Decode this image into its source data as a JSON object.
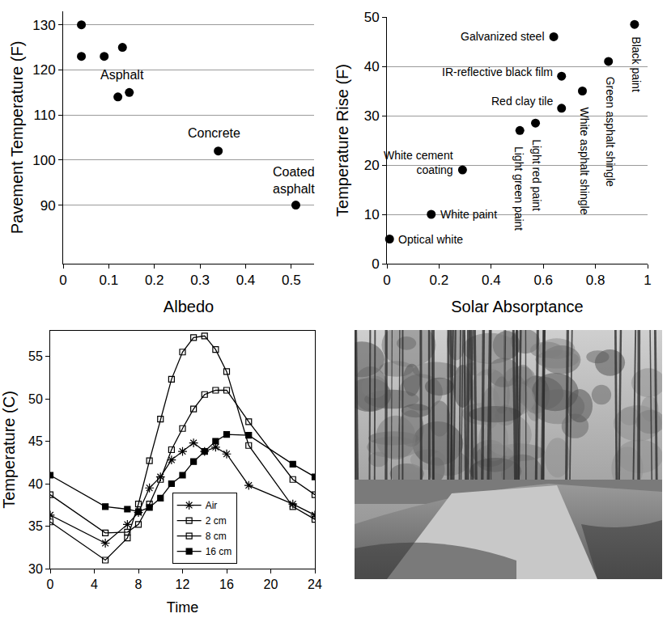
{
  "chart_data": [
    {
      "type": "scatter",
      "x_label": "Albedo",
      "y_label": "Pavement Temperature (F)",
      "xlim": [
        0,
        0.55
      ],
      "xticks": [
        0,
        0.1,
        0.2,
        0.3,
        0.4,
        0.5
      ],
      "ylim": [
        77,
        133
      ],
      "yticks": [
        90,
        100,
        110,
        120,
        130
      ],
      "grid": true,
      "marker": "circle",
      "color": "#000000",
      "x": [
        0.04,
        0.04,
        0.09,
        0.13,
        0.12,
        0.145,
        0.34,
        0.51
      ],
      "values": [
        130,
        123,
        123,
        125,
        114,
        115,
        102,
        90
      ],
      "annotations": [
        {
          "text": "Asphalt",
          "x": 0.13,
          "y": 119
        },
        {
          "text": "Concrete",
          "x": 0.33,
          "y": 106
        },
        {
          "text": "Coated asphalt",
          "x": 0.505,
          "y": 95.5
        }
      ]
    },
    {
      "type": "scatter",
      "x_label": "Solar Absorptance",
      "y_label": "Temperature Rise (F)",
      "xlim": [
        0,
        1
      ],
      "xticks": [
        0,
        0.2,
        0.4,
        0.6,
        0.8,
        1
      ],
      "ylim": [
        0,
        50
      ],
      "yticks": [
        0,
        10,
        20,
        30,
        40,
        50
      ],
      "grid": true,
      "marker": "circle",
      "color": "#000000",
      "x": [
        0.01,
        0.17,
        0.29,
        0.51,
        0.57,
        0.67,
        0.67,
        0.64,
        0.75,
        0.85,
        0.95
      ],
      "values": [
        5,
        10,
        19,
        27,
        28.5,
        31.5,
        38,
        46,
        35,
        41,
        48.5
      ],
      "labels": [
        "Optical white",
        "White paint",
        "White cement coating",
        "Light green paint",
        "Light red paint",
        "Red clay tile",
        "IR-reflective black film",
        "Galvanized steel",
        "White asphalt shingle",
        "Green asphalt shingle",
        "Black paint"
      ]
    },
    {
      "type": "line",
      "x_label": "Time",
      "y_label": "Temperature (C)",
      "xlim": [
        0,
        24
      ],
      "xticks": [
        0,
        4,
        8,
        12,
        16,
        20,
        24
      ],
      "ylim": [
        30,
        58
      ],
      "yticks": [
        30,
        35,
        40,
        45,
        50,
        55
      ],
      "grid": false,
      "legend": "bottom",
      "x": [
        0,
        5,
        7,
        8,
        9,
        10,
        11,
        12,
        13,
        14,
        15,
        16,
        18,
        22,
        24
      ],
      "series": [
        {
          "name": "Air",
          "color": "#000000",
          "marker": "asterisk",
          "values": [
            36.3,
            33.0,
            35.2,
            36.6,
            39.5,
            40.8,
            42.8,
            43.8,
            44.8,
            43.8,
            44.3,
            43.5,
            39.8,
            37.6,
            36.3
          ]
        },
        {
          "name": "2 cm",
          "color": "#000000",
          "marker": "open square",
          "values": [
            35.5,
            31.0,
            33.6,
            37.6,
            42.7,
            47.6,
            52.3,
            55.5,
            57.2,
            57.4,
            55.8,
            53.2,
            44.5,
            37.3,
            35.8
          ]
        },
        {
          "name": "8 cm",
          "color": "#000000",
          "marker": "open square",
          "values": [
            38.7,
            34.2,
            34.3,
            35.2,
            37.6,
            40.5,
            44.0,
            46.5,
            48.8,
            50.5,
            51.0,
            51.0,
            47.3,
            40.5,
            38.7
          ]
        },
        {
          "name": "16 cm",
          "color": "#000000",
          "marker": "square",
          "values": [
            41.0,
            37.3,
            37.0,
            36.7,
            37.2,
            38.3,
            40.0,
            41.0,
            42.6,
            43.8,
            45.0,
            45.8,
            45.7,
            42.3,
            40.8
          ]
        }
      ]
    }
  ]
}
